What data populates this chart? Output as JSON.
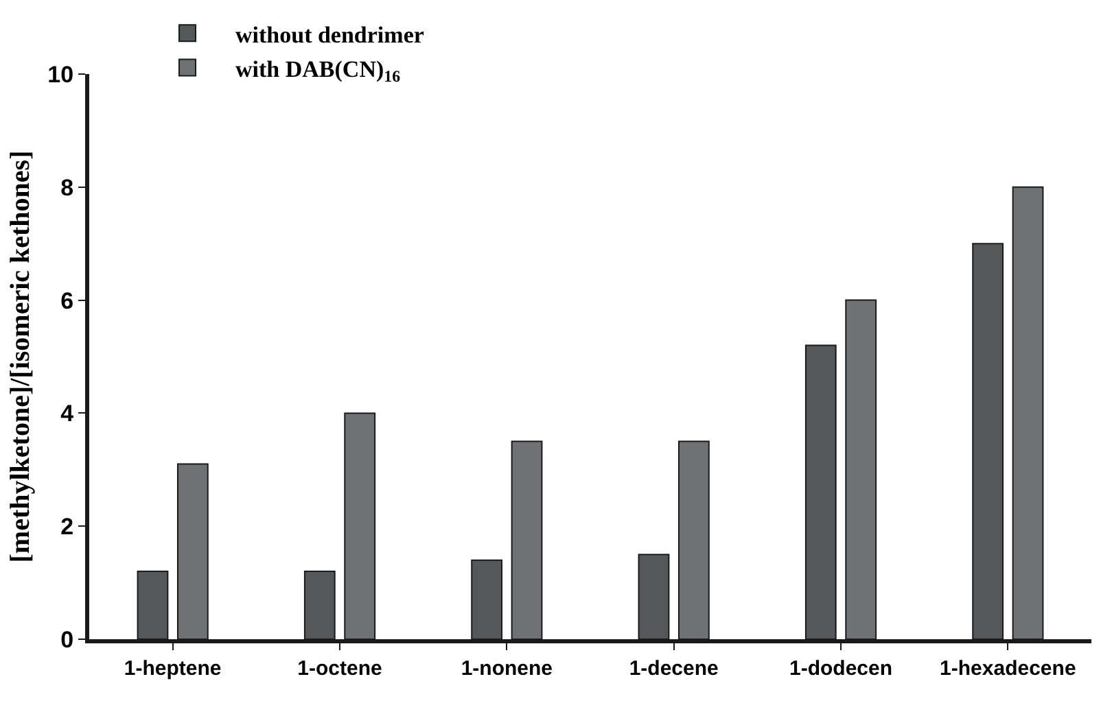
{
  "chart_data": {
    "type": "bar",
    "ylabel": "[methylketone]/[isomeric kethones]",
    "categories": [
      "1-heptene",
      "1-octene",
      "1-nonene",
      "1-decene",
      "1-dodecen",
      "1-hexadecene"
    ],
    "series": [
      {
        "name": "without dendrimer",
        "color": "#555759",
        "values": [
          1.2,
          1.2,
          1.4,
          1.5,
          5.2,
          7.0
        ]
      },
      {
        "name": "with DAB(CN)$_{16}$",
        "color": "#707175",
        "values": [
          3.1,
          4.0,
          3.5,
          3.5,
          6.0,
          8.0
        ]
      }
    ],
    "ylim": [
      0,
      10
    ],
    "yticks": [
      0,
      2,
      4,
      6,
      8,
      10
    ],
    "legend": "top left"
  }
}
